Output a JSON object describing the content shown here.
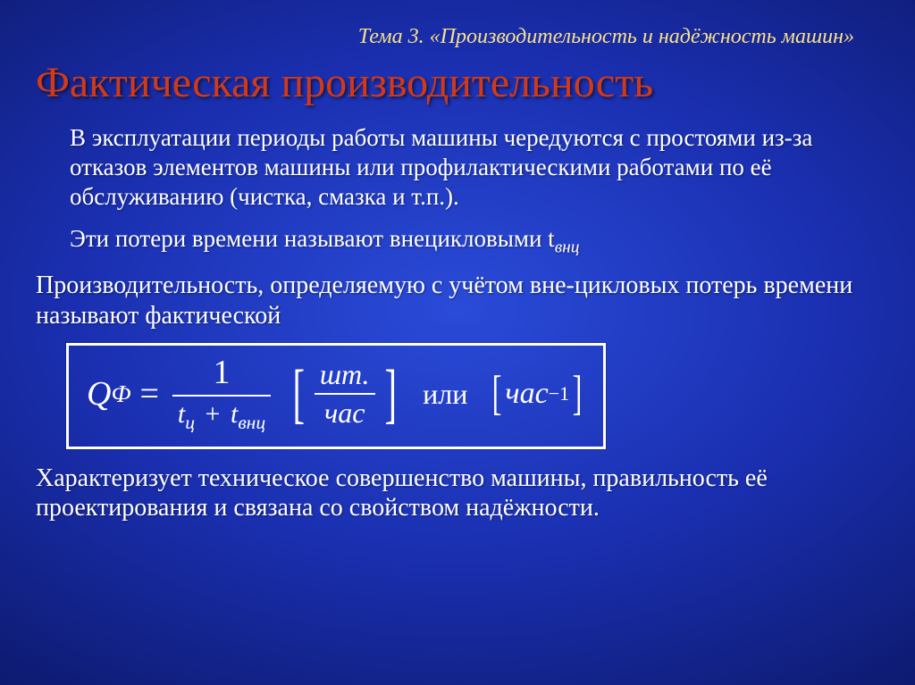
{
  "topic": "Тема 3. «Производительность и надёжность машин»",
  "title": "Фактическая производительность",
  "p1": "В эксплуатации периоды работы машины чередуются с простоями из-за отказов элементов машины или профилактическими работами по её обслуживанию (чистка, смазка и т.п.).",
  "p2_a": "Эти потери времени называют внецикловыми t",
  "p2_sub": "внц",
  "p3": "Производительность, определяемую с учётом вне-цикловых потерь времени называют фактической",
  "formula": {
    "lhs_sym": "Q",
    "lhs_sub": "Ф",
    "eq": "=",
    "num": "1",
    "den_t1": "t",
    "den_s1": "ц",
    "plus": "+",
    "den_t2": "t",
    "den_s2": "внц",
    "unit_num": "шт.",
    "unit_den": "час",
    "or": "или",
    "unit2_base": "час",
    "unit2_exp": "−1"
  },
  "p4": "Характеризует техническое совершенство машины, правильность её проектирования и связана со свойством надёжности.",
  "colors": {
    "topic": "#f9e18a",
    "title": "#d03a1a",
    "text": "#ffffff",
    "border": "#ffffff"
  },
  "fonts": {
    "topic_size": 24,
    "title_size": 48,
    "body_size": 27,
    "formula_size": 38
  }
}
